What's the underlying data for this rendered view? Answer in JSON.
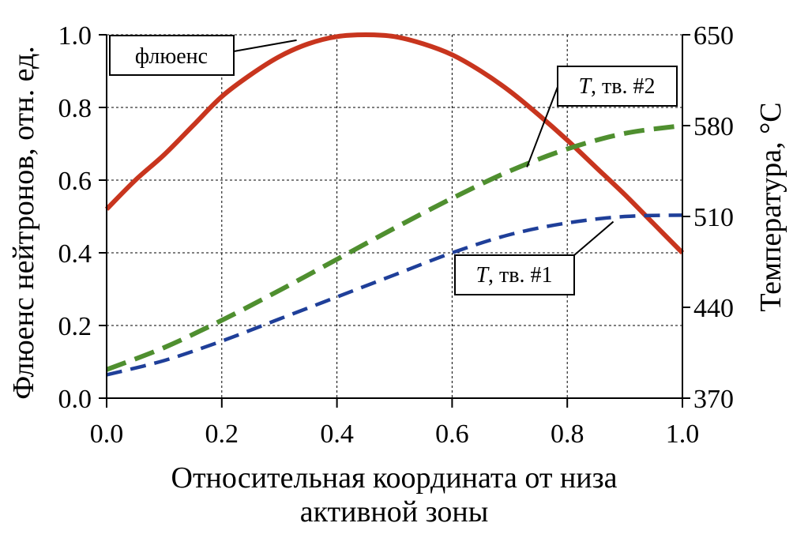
{
  "chart_data": {
    "type": "line",
    "title": "",
    "xlabel_line1": "Относительная координата от низа",
    "xlabel_line2": "активной зоны",
    "ylabel_left": "Флюенс нейтронов, отн. ед.",
    "ylabel_right": "Температура, °С",
    "xlim": [
      0.0,
      1.0
    ],
    "ylim_left": [
      0.0,
      1.0
    ],
    "ylim_right": [
      370,
      650
    ],
    "x_ticks": [
      "0.0",
      "0.2",
      "0.4",
      "0.6",
      "0.8",
      "1.0"
    ],
    "y_left_ticks": [
      "0.0",
      "0.2",
      "0.4",
      "0.6",
      "0.8",
      "1.0"
    ],
    "y_right_ticks": [
      "370",
      "440",
      "510",
      "580",
      "650"
    ],
    "grid": true,
    "series": [
      {
        "name": "флюенс",
        "axis": "left",
        "style": "solid",
        "color": "#c8351e",
        "x": [
          0.0,
          0.05,
          0.1,
          0.15,
          0.2,
          0.25,
          0.3,
          0.35,
          0.4,
          0.45,
          0.5,
          0.55,
          0.6,
          0.65,
          0.7,
          0.75,
          0.8,
          0.85,
          0.9,
          0.95,
          1.0
        ],
        "y": [
          0.52,
          0.6,
          0.67,
          0.75,
          0.83,
          0.89,
          0.94,
          0.975,
          0.995,
          1.0,
          0.995,
          0.975,
          0.945,
          0.9,
          0.845,
          0.78,
          0.71,
          0.635,
          0.56,
          0.48,
          0.4
        ]
      },
      {
        "name": "T, тв. #2",
        "label_italic": "T",
        "label_rest": ", тв. #2",
        "axis": "right",
        "style": "dashed",
        "color": "#4f8f2f",
        "x": [
          0.0,
          0.1,
          0.2,
          0.3,
          0.4,
          0.5,
          0.6,
          0.7,
          0.8,
          0.9,
          1.0
        ],
        "y": [
          392,
          409,
          430,
          453,
          477,
          501,
          524,
          545,
          562,
          574,
          580
        ]
      },
      {
        "name": "T, тв. #1",
        "label_italic": "T",
        "label_rest": ", тв. #1",
        "axis": "right",
        "style": "dashed",
        "color": "#1f3f99",
        "x": [
          0.0,
          0.1,
          0.2,
          0.3,
          0.4,
          0.5,
          0.6,
          0.7,
          0.8,
          0.9,
          1.0
        ],
        "y": [
          388,
          399,
          414,
          431,
          448,
          465,
          482,
          496,
          505,
          510,
          511
        ]
      }
    ],
    "annotations": [
      {
        "text": "флюенс",
        "target_series": 0
      },
      {
        "text_italic": "T",
        "text_rest": ", тв. #2",
        "target_series": 1
      },
      {
        "text_italic": "T",
        "text_rest": ", тв. #1",
        "target_series": 2
      }
    ]
  }
}
